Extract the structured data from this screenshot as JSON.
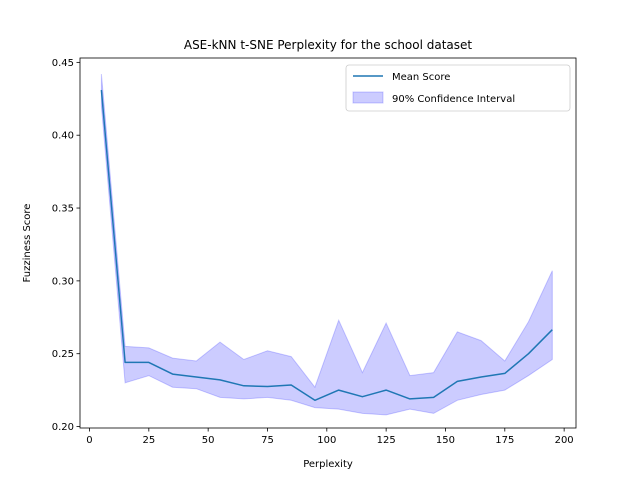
{
  "chart_data": {
    "type": "line",
    "title": "ASE-kNN t-SNE Perplexity for the school dataset",
    "xlabel": "Perplexity",
    "ylabel": "Fuzziness Score",
    "xlim": [
      -4,
      205
    ],
    "ylim": [
      0.199,
      0.453
    ],
    "x_ticks": [
      0,
      25,
      50,
      75,
      100,
      125,
      150,
      175,
      200
    ],
    "y_ticks": [
      0.2,
      0.25,
      0.3,
      0.35,
      0.4,
      0.45
    ],
    "y_tick_labels": [
      "0.20",
      "0.25",
      "0.30",
      "0.35",
      "0.40",
      "0.45"
    ],
    "grid": false,
    "legend_position": "top-right",
    "x": [
      5,
      15,
      25,
      35,
      45,
      55,
      65,
      75,
      85,
      95,
      105,
      115,
      125,
      135,
      145,
      155,
      165,
      175,
      185,
      195
    ],
    "series": [
      {
        "name": "Mean Score",
        "kind": "line",
        "color": "#1f77b4",
        "values": [
          0.431,
          0.244,
          0.244,
          0.236,
          0.234,
          0.232,
          0.228,
          0.2275,
          0.2285,
          0.218,
          0.225,
          0.2205,
          0.225,
          0.219,
          0.22,
          0.231,
          0.234,
          0.2365,
          0.25,
          0.2665
        ]
      },
      {
        "name": "90% Confidence Interval",
        "kind": "band",
        "color": "#0000ff",
        "lower": [
          0.42,
          0.23,
          0.235,
          0.227,
          0.226,
          0.22,
          0.219,
          0.22,
          0.218,
          0.213,
          0.212,
          0.209,
          0.208,
          0.212,
          0.209,
          0.218,
          0.222,
          0.225,
          0.235,
          0.246
        ],
        "upper": [
          0.442,
          0.255,
          0.254,
          0.247,
          0.245,
          0.258,
          0.246,
          0.252,
          0.248,
          0.227,
          0.273,
          0.237,
          0.271,
          0.235,
          0.237,
          0.265,
          0.259,
          0.245,
          0.272,
          0.307
        ]
      }
    ]
  }
}
